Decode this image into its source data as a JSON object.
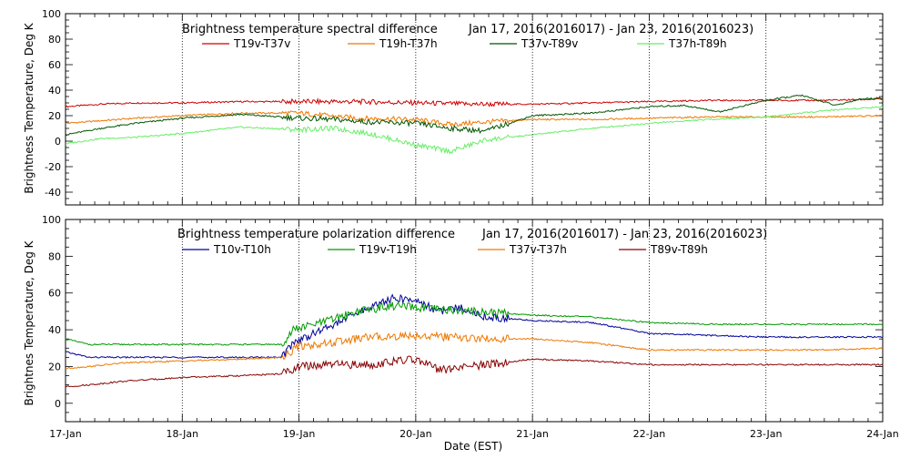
{
  "chart_data": [
    {
      "type": "line",
      "title": "Brightness temperature spectral difference",
      "date_range": "Jan 17, 2016(2016017) - Jan 23, 2016(2016023)",
      "ylabel": "Brightness Temperature, Deg K",
      "xlabel": "",
      "ylim": [
        -50,
        100
      ],
      "yticks": [
        -40,
        -20,
        0,
        20,
        40,
        60,
        80,
        100
      ],
      "xlim": [
        0,
        7
      ],
      "grid": "vertical dotted at day boundaries",
      "legend": "top, inside plot",
      "series": [
        {
          "name": "T19v-T37v",
          "color": "#cc0000",
          "x": [
            0,
            0.3,
            0.6,
            1.0,
            1.5,
            2.0,
            2.5,
            3.0,
            3.5,
            4.0,
            4.5,
            5.0,
            5.5,
            6.0,
            6.5,
            7.0
          ],
          "values": [
            27,
            29,
            30,
            30,
            31,
            31,
            31,
            30,
            29,
            29,
            30,
            31,
            32,
            32,
            32,
            33
          ]
        },
        {
          "name": "T19h-T37h",
          "color": "#ee7700",
          "x": [
            0,
            0.3,
            0.6,
            1.0,
            1.5,
            2.0,
            2.5,
            3.0,
            3.3,
            3.6,
            4.0,
            4.5,
            5.0,
            5.5,
            6.0,
            6.5,
            7.0
          ],
          "values": [
            14,
            16,
            18,
            20,
            22,
            22,
            18,
            17,
            13,
            15,
            17,
            17,
            18,
            19,
            19,
            19,
            20
          ]
        },
        {
          "name": "T37v-T89v",
          "color": "#005500",
          "x": [
            0,
            0.3,
            0.6,
            1.0,
            1.5,
            2.0,
            2.3,
            2.6,
            3.0,
            3.3,
            3.6,
            4.0,
            4.5,
            5.0,
            5.3,
            5.6,
            6.0,
            6.3,
            6.6,
            6.8,
            7.0
          ],
          "values": [
            5,
            10,
            14,
            18,
            21,
            18,
            17,
            15,
            14,
            10,
            8,
            20,
            22,
            27,
            28,
            23,
            32,
            36,
            28,
            33,
            34
          ]
        },
        {
          "name": "T37h-T89h",
          "color": "#66ee66",
          "x": [
            0,
            0.3,
            0.6,
            1.0,
            1.5,
            2.0,
            2.3,
            2.6,
            3.0,
            3.3,
            3.6,
            4.0,
            4.5,
            5.0,
            5.5,
            6.0,
            6.5,
            7.0
          ],
          "values": [
            -2,
            2,
            3,
            6,
            11,
            9,
            10,
            6,
            -3,
            -8,
            1,
            5,
            10,
            14,
            17,
            19,
            24,
            27
          ]
        }
      ]
    },
    {
      "type": "line",
      "title": "Brightness temperature polarization difference",
      "date_range": "Jan 17, 2016(2016017) - Jan 23, 2016(2016023)",
      "ylabel": "Brightnes Temperature, Deg K",
      "xlabel": "Date (EST)",
      "ylim": [
        -10,
        100
      ],
      "yticks": [
        0,
        20,
        40,
        60,
        80,
        100
      ],
      "xlim": [
        0,
        7
      ],
      "categories": [
        "17-Jan",
        "18-Jan",
        "19-Jan",
        "20-Jan",
        "21-Jan",
        "22-Jan",
        "23-Jan",
        "24-Jan"
      ],
      "grid": "vertical dotted at day boundaries",
      "legend": "top, inside plot",
      "series": [
        {
          "name": "T10v-T10h",
          "color": "#000099",
          "x": [
            0,
            0.2,
            0.5,
            1.0,
            1.5,
            1.85,
            1.95,
            2.2,
            2.4,
            2.6,
            2.8,
            3.0,
            3.2,
            3.4,
            3.6,
            4.0,
            4.5,
            5.0,
            5.5,
            6.0,
            6.5,
            7.0
          ],
          "values": [
            28,
            25,
            25,
            25,
            25,
            25,
            33,
            40,
            46,
            52,
            57,
            56,
            50,
            52,
            47,
            45,
            44,
            38,
            37,
            36,
            36,
            36
          ]
        },
        {
          "name": "T19v-T19h",
          "color": "#009900",
          "x": [
            0,
            0.2,
            0.5,
            1.0,
            1.5,
            1.85,
            1.95,
            2.2,
            2.5,
            2.8,
            3.0,
            3.2,
            3.5,
            4.0,
            4.5,
            5.0,
            5.5,
            6.0,
            6.5,
            7.0
          ],
          "values": [
            35,
            32,
            32,
            32,
            32,
            32,
            40,
            44,
            50,
            53,
            52,
            51,
            50,
            48,
            47,
            44,
            43,
            43,
            43,
            43
          ]
        },
        {
          "name": "T37v-T37h",
          "color": "#ee7700",
          "x": [
            0,
            0.2,
            0.5,
            1.0,
            1.5,
            1.85,
            2.0,
            2.3,
            2.6,
            3.0,
            3.3,
            3.6,
            4.0,
            4.5,
            5.0,
            5.5,
            6.0,
            6.5,
            7.0
          ],
          "values": [
            19,
            20,
            22,
            23,
            24,
            25,
            31,
            33,
            36,
            37,
            36,
            35,
            35,
            33,
            29,
            29,
            29,
            29,
            30
          ]
        },
        {
          "name": "T89v-T89h",
          "color": "#880000",
          "x": [
            0,
            0.2,
            0.5,
            1.0,
            1.5,
            1.85,
            2.0,
            2.3,
            2.6,
            3.0,
            3.2,
            3.6,
            4.0,
            4.5,
            5.0,
            5.5,
            6.0,
            6.5,
            7.0
          ],
          "values": [
            9,
            10,
            12,
            14,
            15,
            16,
            20,
            21,
            21,
            24,
            18,
            21,
            24,
            23,
            21,
            21,
            21,
            21,
            21
          ]
        }
      ]
    }
  ]
}
